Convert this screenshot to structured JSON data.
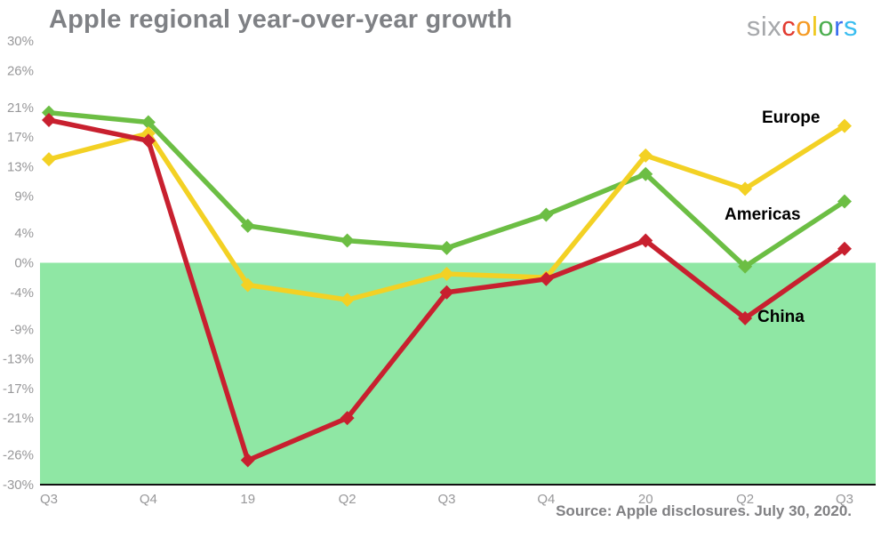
{
  "logo": {
    "prefix": "six",
    "word": "colors",
    "letter_colors": [
      "#e23b30",
      "#f59a23",
      "#f0c81e",
      "#4cae4f",
      "#3b6ff0",
      "#38bdf0"
    ]
  },
  "chart_data": {
    "type": "line",
    "title": "Apple regional year-over-year growth",
    "categories": [
      "Q3",
      "Q4",
      "19",
      "Q2",
      "Q3",
      "Q4",
      "20",
      "Q2",
      "Q3"
    ],
    "yticks": [
      30,
      26,
      21,
      17,
      13,
      9,
      4,
      0,
      -4,
      -9,
      -13,
      -17,
      -21,
      -26,
      -30
    ],
    "ylim": [
      -30,
      30
    ],
    "negative_fill": "#8fe7a4",
    "grid": false,
    "legend_position": "inline-right",
    "series": [
      {
        "name": "Americas",
        "color": "#6cbe44",
        "values": [
          20.3,
          19,
          5,
          3,
          2,
          6.5,
          12,
          -0.5,
          8.3
        ],
        "label_x": 815,
        "label_y": 247
      },
      {
        "name": "Europe",
        "color": "#f3d124",
        "values": [
          14,
          17.5,
          -3,
          -5,
          -1.5,
          -2,
          14.5,
          10,
          18.5
        ],
        "label_x": 857,
        "label_y": 138
      },
      {
        "name": "China",
        "color": "#c8202f",
        "values": [
          19.3,
          16.5,
          -26.7,
          -21,
          -4,
          -2.2,
          3,
          -7.5,
          1.9
        ],
        "label_x": 852,
        "label_y": 362
      }
    ],
    "source": "Source: Apple disclosures. July 30, 2020."
  }
}
